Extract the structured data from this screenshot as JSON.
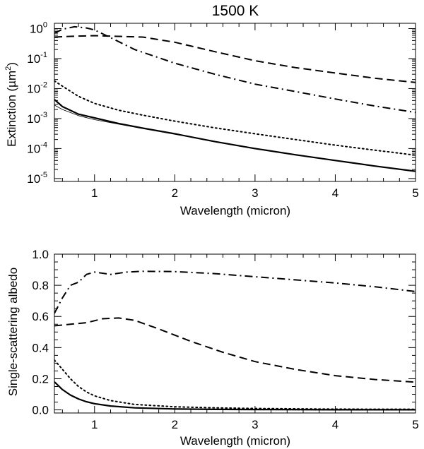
{
  "chart_data": [
    {
      "type": "line",
      "title": "1500 K",
      "xlabel": "Wavelength (micron)",
      "ylabel": "Extinction (µm",
      "ylabel_sup": "2",
      "ylabel_end": ")",
      "yscale": "log",
      "xlim": [
        0.5,
        5
      ],
      "ylim": [
        8e-06,
        1.5
      ],
      "xticks": [
        1,
        2,
        3,
        4,
        5
      ],
      "xtick_labels": [
        "1",
        "2",
        "3",
        "4",
        "5"
      ],
      "yticks": [
        1e-05,
        0.0001,
        0.001,
        0.01,
        0.1,
        1
      ],
      "ytick_labels": [
        {
          "base": "10",
          "exp": "-5"
        },
        {
          "base": "10",
          "exp": "-4"
        },
        {
          "base": "10",
          "exp": "-3"
        },
        {
          "base": "10",
          "exp": "-2"
        },
        {
          "base": "10",
          "exp": "-1"
        },
        {
          "base": "10",
          "exp": "0"
        }
      ],
      "series": [
        {
          "name": "dashed",
          "style": "dashed",
          "width": 2,
          "x": [
            0.5,
            0.7,
            1.0,
            1.3,
            1.6,
            2.0,
            2.5,
            3.0,
            3.5,
            4.0,
            4.5,
            5.0
          ],
          "y": [
            0.52,
            0.55,
            0.58,
            0.55,
            0.52,
            0.35,
            0.17,
            0.085,
            0.05,
            0.033,
            0.022,
            0.016
          ]
        },
        {
          "name": "dash-dot",
          "style": "dashdot",
          "width": 2,
          "x": [
            0.5,
            0.6,
            0.75,
            0.9,
            1.0,
            1.2,
            1.5,
            2.0,
            2.5,
            3.0,
            3.5,
            4.0,
            4.5,
            5.0
          ],
          "y": [
            0.7,
            0.95,
            1.15,
            1.05,
            0.9,
            0.5,
            0.2,
            0.07,
            0.03,
            0.014,
            0.008,
            0.0045,
            0.0026,
            0.0016
          ]
        },
        {
          "name": "dotted",
          "style": "dotted",
          "width": 2,
          "x": [
            0.5,
            0.6,
            0.8,
            1.0,
            1.3,
            1.6,
            2.0,
            2.5,
            3.0,
            3.5,
            4.0,
            4.5,
            5.0
          ],
          "y": [
            0.018,
            0.012,
            0.0055,
            0.0032,
            0.0019,
            0.0013,
            0.00082,
            0.00049,
            0.00031,
            0.0002,
            0.00013,
            8.8e-05,
            6e-05
          ]
        },
        {
          "name": "solid-thick",
          "style": "solid",
          "width": 2.2,
          "x": [
            0.5,
            0.6,
            0.8,
            1.0,
            1.3,
            1.6,
            2.0,
            2.5,
            3.0,
            3.5,
            4.0,
            4.5,
            5.0
          ],
          "y": [
            0.0043,
            0.0025,
            0.0014,
            0.00105,
            0.00068,
            0.00048,
            0.00031,
            0.00017,
            0.0001,
            6.2e-05,
            4e-05,
            2.6e-05,
            1.75e-05
          ]
        },
        {
          "name": "solid-thin",
          "style": "solid",
          "width": 0.8,
          "x": [
            0.5,
            0.6,
            0.8,
            1.0,
            1.3,
            1.6,
            2.0
          ],
          "y": [
            0.0028,
            0.002,
            0.00125,
            0.00092,
            0.00065,
            0.00047,
            0.00031
          ]
        }
      ]
    },
    {
      "type": "line",
      "title": "",
      "xlabel": "Wavelength (micron)",
      "ylabel": "Single-scattering albedo",
      "yscale": "linear",
      "xlim": [
        0.5,
        5
      ],
      "ylim": [
        -0.02,
        1.0
      ],
      "xticks": [
        1,
        2,
        3,
        4,
        5
      ],
      "xtick_labels": [
        "1",
        "2",
        "3",
        "4",
        "5"
      ],
      "yticks": [
        0.0,
        0.2,
        0.4,
        0.6,
        0.8,
        1.0
      ],
      "ytick_labels": [
        "0.0",
        "0.2",
        "0.4",
        "0.6",
        "0.8",
        "1.0"
      ],
      "series": [
        {
          "name": "dash-dot",
          "style": "dashdot",
          "width": 2,
          "x": [
            0.5,
            0.6,
            0.7,
            0.8,
            0.9,
            1.0,
            1.2,
            1.4,
            1.6,
            2.0,
            2.5,
            3.0,
            3.5,
            4.0,
            4.5,
            5.0
          ],
          "y": [
            0.62,
            0.72,
            0.8,
            0.82,
            0.87,
            0.885,
            0.87,
            0.885,
            0.89,
            0.888,
            0.875,
            0.855,
            0.835,
            0.815,
            0.79,
            0.76
          ]
        },
        {
          "name": "dashed",
          "style": "dashed",
          "width": 2,
          "x": [
            0.5,
            0.7,
            0.9,
            1.1,
            1.3,
            1.5,
            1.8,
            2.2,
            2.6,
            3.0,
            3.5,
            4.0,
            4.5,
            5.0
          ],
          "y": [
            0.54,
            0.55,
            0.56,
            0.585,
            0.59,
            0.575,
            0.52,
            0.44,
            0.37,
            0.31,
            0.26,
            0.22,
            0.195,
            0.178
          ]
        },
        {
          "name": "dotted",
          "style": "dotted",
          "width": 2,
          "x": [
            0.5,
            0.6,
            0.7,
            0.8,
            0.9,
            1.0,
            1.2,
            1.5,
            2.0,
            2.5,
            3.0,
            4.0,
            5.0
          ],
          "y": [
            0.32,
            0.26,
            0.2,
            0.15,
            0.115,
            0.09,
            0.06,
            0.035,
            0.02,
            0.013,
            0.009,
            0.005,
            0.004
          ]
        },
        {
          "name": "solid",
          "style": "solid",
          "width": 2.2,
          "x": [
            0.5,
            0.6,
            0.7,
            0.8,
            0.9,
            1.0,
            1.2,
            1.5,
            2.0,
            2.5,
            3.0,
            4.0,
            5.0
          ],
          "y": [
            0.18,
            0.13,
            0.095,
            0.07,
            0.052,
            0.04,
            0.025,
            0.013,
            0.006,
            0.003,
            0.002,
            0.001,
            0.001
          ]
        }
      ]
    }
  ]
}
